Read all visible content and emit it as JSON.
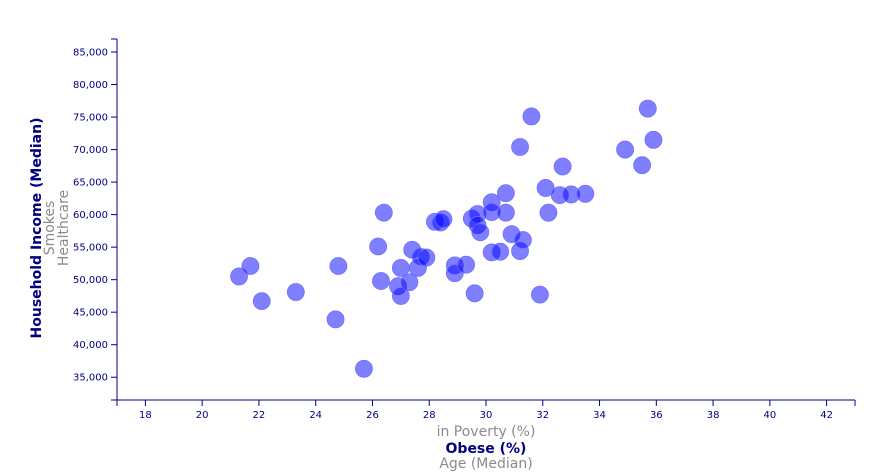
{
  "chart_data": {
    "type": "scatter",
    "title": "",
    "x_axis_options": [
      {
        "label": "in Poverty (%)",
        "active": false
      },
      {
        "label": "Obese (%)",
        "active": true
      },
      {
        "label": "Age (Median)",
        "active": false
      }
    ],
    "y_axis_options": [
      {
        "label": "Household Income (Median)",
        "active": true
      },
      {
        "label": "Smokes",
        "active": false
      },
      {
        "label": "Healthcare",
        "active": false
      }
    ],
    "xlabel": "Obese (%)",
    "ylabel": "Household Income (Median)",
    "xlim": [
      17,
      43
    ],
    "ylim": [
      31500,
      87000
    ],
    "xticks": [
      18,
      20,
      22,
      24,
      26,
      28,
      30,
      32,
      34,
      36,
      38,
      40,
      42
    ],
    "yticks": [
      35000,
      40000,
      45000,
      50000,
      55000,
      60000,
      65000,
      70000,
      75000,
      80000,
      85000
    ],
    "yticks_labels": [
      "35,000",
      "40,000",
      "45,000",
      "50,000",
      "55,000",
      "60,000",
      "65,000",
      "70,000",
      "75,000",
      "80,000",
      "85,000"
    ],
    "grid": false,
    "point_color": "#0000ff",
    "points": [
      {
        "x": 21.3,
        "y": 50500
      },
      {
        "x": 21.7,
        "y": 52100
      },
      {
        "x": 22.1,
        "y": 46700
      },
      {
        "x": 23.3,
        "y": 48100
      },
      {
        "x": 24.7,
        "y": 43900
      },
      {
        "x": 24.8,
        "y": 52100
      },
      {
        "x": 25.7,
        "y": 36300
      },
      {
        "x": 26.2,
        "y": 55100
      },
      {
        "x": 26.3,
        "y": 49800
      },
      {
        "x": 26.4,
        "y": 60300
      },
      {
        "x": 26.9,
        "y": 49000
      },
      {
        "x": 27.0,
        "y": 51800
      },
      {
        "x": 27.0,
        "y": 47500
      },
      {
        "x": 27.3,
        "y": 49600
      },
      {
        "x": 27.4,
        "y": 54600
      },
      {
        "x": 27.6,
        "y": 51800
      },
      {
        "x": 27.7,
        "y": 53500
      },
      {
        "x": 27.9,
        "y": 53400
      },
      {
        "x": 28.2,
        "y": 58900
      },
      {
        "x": 28.4,
        "y": 58800
      },
      {
        "x": 28.5,
        "y": 59300
      },
      {
        "x": 28.9,
        "y": 52200
      },
      {
        "x": 28.9,
        "y": 51000
      },
      {
        "x": 29.3,
        "y": 52300
      },
      {
        "x": 29.5,
        "y": 59400
      },
      {
        "x": 29.6,
        "y": 47900
      },
      {
        "x": 29.7,
        "y": 60100
      },
      {
        "x": 29.7,
        "y": 58400
      },
      {
        "x": 29.8,
        "y": 57300
      },
      {
        "x": 30.2,
        "y": 61900
      },
      {
        "x": 30.2,
        "y": 60400
      },
      {
        "x": 30.2,
        "y": 54200
      },
      {
        "x": 30.5,
        "y": 54300
      },
      {
        "x": 30.7,
        "y": 63300
      },
      {
        "x": 30.7,
        "y": 60300
      },
      {
        "x": 30.9,
        "y": 57000
      },
      {
        "x": 31.2,
        "y": 70400
      },
      {
        "x": 31.2,
        "y": 54400
      },
      {
        "x": 31.3,
        "y": 56100
      },
      {
        "x": 31.6,
        "y": 75100
      },
      {
        "x": 31.9,
        "y": 47700
      },
      {
        "x": 32.1,
        "y": 64100
      },
      {
        "x": 32.2,
        "y": 60300
      },
      {
        "x": 32.6,
        "y": 63000
      },
      {
        "x": 32.7,
        "y": 67400
      },
      {
        "x": 33.0,
        "y": 63100
      },
      {
        "x": 33.5,
        "y": 63200
      },
      {
        "x": 34.9,
        "y": 70000
      },
      {
        "x": 35.5,
        "y": 67600
      },
      {
        "x": 35.7,
        "y": 76300
      },
      {
        "x": 35.9,
        "y": 71500
      }
    ]
  }
}
